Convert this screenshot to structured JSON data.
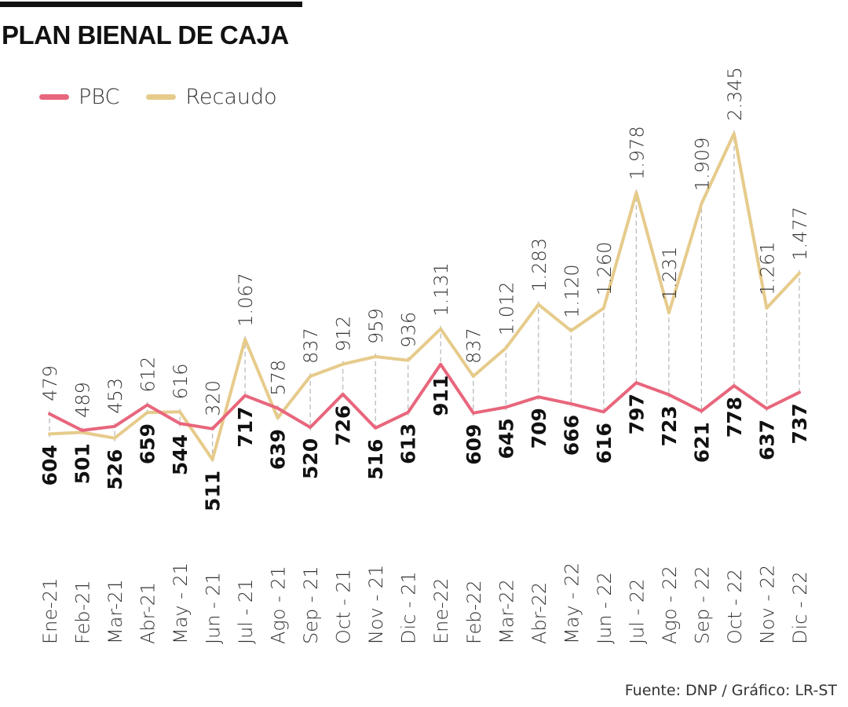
{
  "title": "PLAN BIENAL DE CAJA",
  "source": "Fuente: DNP / Gráfico: LR-ST",
  "chart_data": {
    "type": "line",
    "title": "PLAN BIENAL DE CAJA",
    "legend_position": "top-left",
    "grid": false,
    "categories": [
      "Ene-21",
      "Feb-21",
      "Mar-21",
      "Abr-21",
      "May - 21",
      "Jun - 21",
      "Jul - 21",
      "Ago - 21",
      "Sep - 21",
      "Oct - 21",
      "Nov - 21",
      "Dic - 21",
      "Ene-22",
      "Feb-22",
      "Mar-22",
      "Abr-22",
      "May - 22",
      "Jun - 22",
      "Jul - 22",
      "Ago - 22",
      "Sep - 22",
      "Oct - 22",
      "Nov - 22",
      "Dic - 22"
    ],
    "series": [
      {
        "name": "PBC",
        "color": "#e8667c",
        "values": [
          604,
          501,
          526,
          659,
          544,
          511,
          717,
          639,
          520,
          726,
          516,
          613,
          911,
          609,
          645,
          709,
          666,
          616,
          797,
          723,
          621,
          778,
          637,
          737
        ]
      },
      {
        "name": "Recaudo",
        "color": "#e6cb8b",
        "values": [
          479,
          489,
          453,
          612,
          616,
          320,
          1067,
          578,
          837,
          912,
          959,
          936,
          1131,
          837,
          1012,
          1283,
          1120,
          1260,
          1978,
          1231,
          1909,
          2345,
          1261,
          1477
        ]
      }
    ]
  }
}
